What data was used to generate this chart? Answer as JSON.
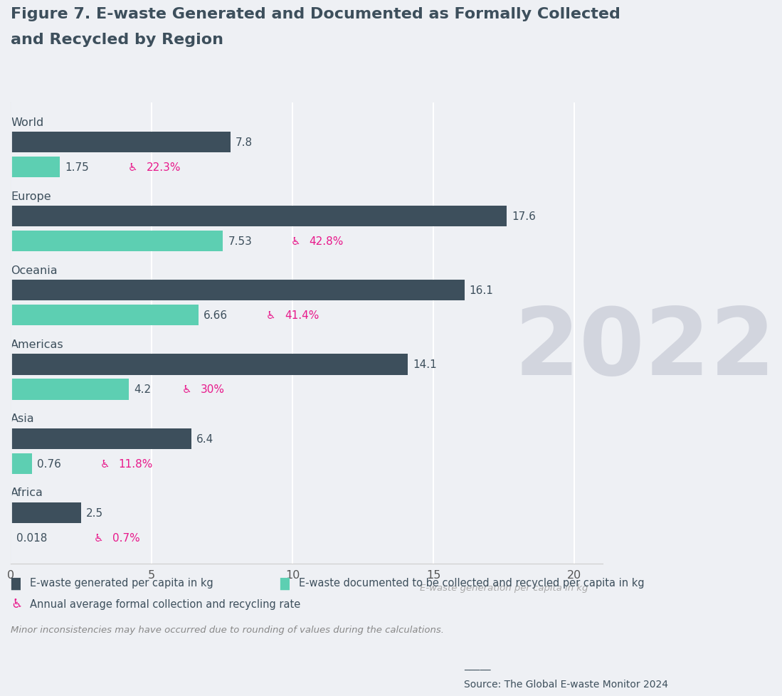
{
  "title_line1": "Figure 7. E-waste Generated and Documented as Formally Collected",
  "title_line2": "and Recycled by Region",
  "regions": [
    "World",
    "Europe",
    "Oceania",
    "Americas",
    "Asia",
    "Africa"
  ],
  "generated": [
    7.8,
    17.6,
    16.1,
    14.1,
    6.4,
    2.5
  ],
  "generated_labels": [
    "7.8",
    "17.6",
    "16.1",
    "14.1",
    "6.4",
    "2.5"
  ],
  "collected": [
    1.75,
    7.53,
    6.66,
    4.2,
    0.76,
    0.018
  ],
  "collected_labels": [
    "1.75",
    "7.53",
    "6.66",
    "4.2",
    "0.76",
    "0.018"
  ],
  "rates": [
    "22.3%",
    "42.8%",
    "41.4%",
    "30%",
    "11.8%",
    "0.7%"
  ],
  "dark_color": "#3d4f5c",
  "teal_color": "#5dcfb2",
  "pink_color": "#e8198b",
  "bg_color": "#eef0f4",
  "grid_color": "#ffffff",
  "xlabel": "E-waste generation per capita in kg",
  "xlim": [
    0,
    21
  ],
  "xticks": [
    0,
    5,
    10,
    15,
    20
  ],
  "legend1": "E-waste generated per capita in kg",
  "legend2": "E-waste documented to be collected and recycled per capita in kg",
  "legend3": "Annual average formal collection and recycling rate",
  "footnote": "Minor inconsistencies may have occurred due to rounding of values during the calculations.",
  "source": "Source: The Global E-waste Monitor 2024",
  "watermark": "2022",
  "bar_height": 0.28,
  "title_fontsize": 16,
  "label_fontsize": 11,
  "region_fontsize": 11.5
}
